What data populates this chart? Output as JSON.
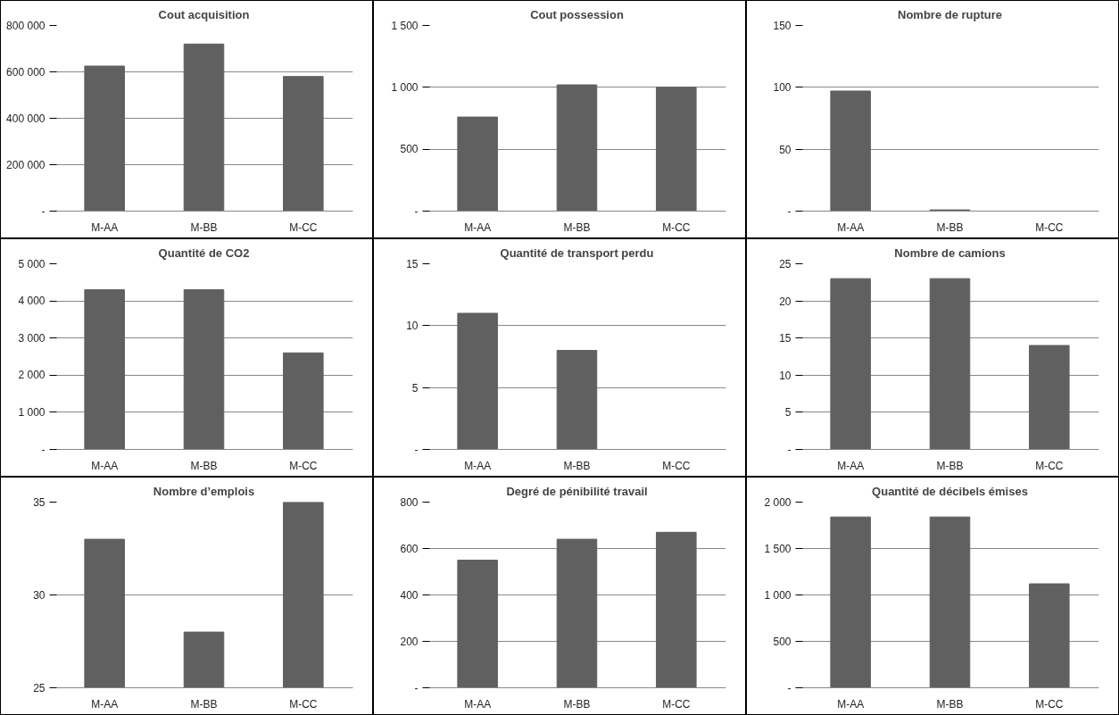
{
  "chart_data": [
    {
      "type": "bar",
      "title": "Cout acquisition",
      "categories": [
        "M-AA",
        "M-BB",
        "M-CC"
      ],
      "values": [
        625000,
        720000,
        580000
      ],
      "color": "#606060",
      "ylim": [
        0,
        800000
      ],
      "yticks": [
        {
          "value": 0,
          "label": "-"
        },
        {
          "value": 200000,
          "label": "200 000"
        },
        {
          "value": 400000,
          "label": "400 000"
        },
        {
          "value": 600000,
          "label": "600 000"
        },
        {
          "value": 800000,
          "label": "800 000"
        }
      ],
      "grid": "y"
    },
    {
      "type": "bar",
      "title": "Cout possession",
      "categories": [
        "M-AA",
        "M-BB",
        "M-CC"
      ],
      "values": [
        760,
        1020,
        1000
      ],
      "color": "#606060",
      "ylim": [
        0,
        1500
      ],
      "yticks": [
        {
          "value": 0,
          "label": "-"
        },
        500,
        {
          "value": 1000,
          "label": "1 000"
        },
        {
          "value": 1500,
          "label": "1 500"
        }
      ],
      "grid": "y"
    },
    {
      "type": "bar",
      "title": "Nombre de rupture",
      "categories": [
        "M-AA",
        "M-BB",
        "M-CC"
      ],
      "values": [
        97,
        1,
        0
      ],
      "color": "#606060",
      "ylim": [
        0,
        150
      ],
      "yticks": [
        {
          "value": 0,
          "label": "-"
        },
        50,
        100,
        150
      ],
      "grid": "y"
    },
    {
      "type": "bar",
      "title": "Quantité de CO2",
      "categories": [
        "M-AA",
        "M-BB",
        "M-CC"
      ],
      "values": [
        4300,
        4300,
        2600
      ],
      "color": "#606060",
      "ylim": [
        0,
        5000
      ],
      "yticks": [
        {
          "value": 0,
          "label": "-"
        },
        {
          "value": 1000,
          "label": "1 000"
        },
        {
          "value": 2000,
          "label": "2 000"
        },
        {
          "value": 3000,
          "label": "3 000"
        },
        {
          "value": 4000,
          "label": "4 000"
        },
        {
          "value": 5000,
          "label": "5 000"
        }
      ],
      "grid": "y"
    },
    {
      "type": "bar",
      "title": "Quantité de transport perdu",
      "categories": [
        "M-AA",
        "M-BB",
        "M-CC"
      ],
      "values": [
        11,
        8,
        0
      ],
      "color": "#606060",
      "ylim": [
        0,
        15
      ],
      "yticks": [
        {
          "value": 0,
          "label": "-"
        },
        5,
        10,
        15
      ],
      "grid": "y"
    },
    {
      "type": "bar",
      "title": "Nombre de camions",
      "categories": [
        "M-AA",
        "M-BB",
        "M-CC"
      ],
      "values": [
        23,
        23,
        14
      ],
      "color": "#606060",
      "ylim": [
        0,
        25
      ],
      "yticks": [
        {
          "value": 0,
          "label": "-"
        },
        5,
        10,
        15,
        20,
        25
      ],
      "grid": "y"
    },
    {
      "type": "bar",
      "title": "Nombre d’emplois",
      "categories": [
        "M-AA",
        "M-BB",
        "M-CC"
      ],
      "values": [
        33,
        28,
        35
      ],
      "color": "#606060",
      "ylim": [
        25,
        35
      ],
      "yticks": [
        25,
        30,
        35
      ],
      "grid": "y"
    },
    {
      "type": "bar",
      "title": "Degré de pénibilité travail",
      "categories": [
        "M-AA",
        "M-BB",
        "M-CC"
      ],
      "values": [
        550,
        640,
        670
      ],
      "color": "#606060",
      "ylim": [
        0,
        800
      ],
      "yticks": [
        {
          "value": 0,
          "label": "-"
        },
        200,
        400,
        600,
        800
      ],
      "grid": "y"
    },
    {
      "type": "bar",
      "title": "Quantité de décibels émises",
      "categories": [
        "M-AA",
        "M-BB",
        "M-CC"
      ],
      "values": [
        1840,
        1840,
        1120
      ],
      "color": "#606060",
      "ylim": [
        0,
        2000
      ],
      "yticks": [
        {
          "value": 0,
          "label": "-"
        },
        500,
        {
          "value": 1000,
          "label": "1 000"
        },
        {
          "value": 1500,
          "label": "1 500"
        },
        {
          "value": 2000,
          "label": "2 000"
        }
      ],
      "grid": "y"
    }
  ]
}
